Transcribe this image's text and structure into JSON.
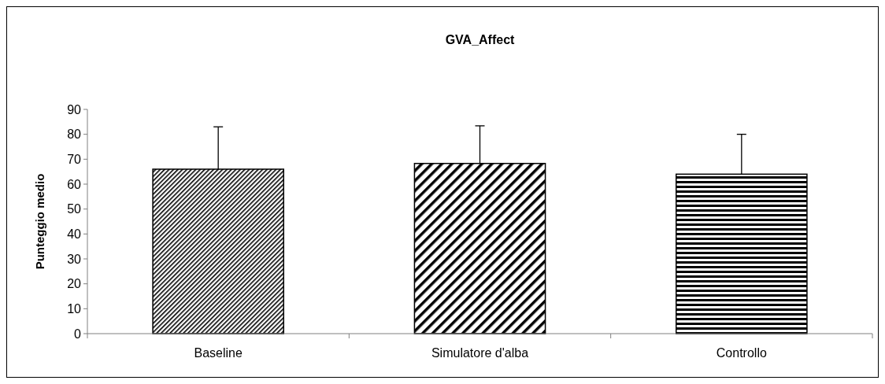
{
  "chart_data": {
    "type": "bar",
    "title": "GVA_Affect",
    "ylabel": "Punteggio medio",
    "categories": [
      "Baseline",
      "Simulatore d'alba",
      "Controllo"
    ],
    "values": [
      66,
      68.3,
      64
    ],
    "errors": [
      [
        66,
        83
      ],
      [
        68.3,
        83.4
      ],
      [
        64,
        80
      ]
    ],
    "color": "#000000",
    "ylim": [
      0,
      90
    ],
    "yticks": [
      0,
      10,
      20,
      30,
      40,
      50,
      60,
      70,
      80,
      90
    ],
    "grid": false
  }
}
